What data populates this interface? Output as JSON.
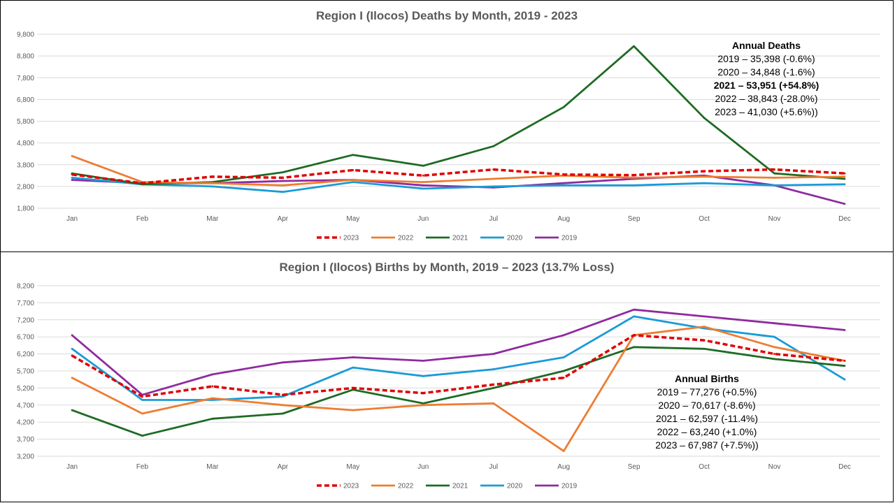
{
  "chart_data": [
    {
      "type": "line",
      "title": "Region I (Ilocos) Deaths by Month, 2019 - 2023",
      "categories": [
        "Jan",
        "Feb",
        "Mar",
        "Apr",
        "May",
        "Jun",
        "Jul",
        "Aug",
        "Sep",
        "Oct",
        "Nov",
        "Dec"
      ],
      "ylim": [
        1800,
        9800
      ],
      "yticks": [
        "1,800",
        "2,800",
        "3,800",
        "4,800",
        "5,800",
        "6,800",
        "7,800",
        "8,800",
        "9,800"
      ],
      "grid": true,
      "legend_position": "bottom",
      "series": [
        {
          "name": "2023",
          "color": "#E00000",
          "dashed": true,
          "values": [
            3350,
            2950,
            3250,
            3200,
            3550,
            3300,
            3580,
            3350,
            3320,
            3500,
            3580,
            3400
          ]
        },
        {
          "name": "2022",
          "color": "#ED7D31",
          "dashed": false,
          "values": [
            4200,
            3000,
            2950,
            2850,
            3100,
            3000,
            3150,
            3300,
            3200,
            3250,
            3200,
            3250
          ]
        },
        {
          "name": "2021",
          "color": "#1E6B24",
          "dashed": false,
          "values": [
            3400,
            2900,
            3000,
            3450,
            4250,
            3750,
            4650,
            6450,
            9250,
            5950,
            3400,
            3150
          ]
        },
        {
          "name": "2020",
          "color": "#1A9BD7",
          "dashed": false,
          "values": [
            3200,
            2900,
            2800,
            2550,
            3000,
            2700,
            2800,
            2850,
            2850,
            2950,
            2850,
            2900
          ]
        },
        {
          "name": "2019",
          "color": "#8E2B9E",
          "dashed": false,
          "values": [
            3100,
            2950,
            2950,
            3050,
            3100,
            2850,
            2750,
            2950,
            3150,
            3300,
            2850,
            2000
          ]
        }
      ],
      "annotation": {
        "header": "Annual Deaths",
        "lines": [
          {
            "text": "2019 – 35,398 (-0.6%)",
            "bold": false
          },
          {
            "text": "2020 – 34,848 (-1.6%)",
            "bold": false
          },
          {
            "text": "2021 – 53,951 (+54.8%)",
            "bold": true
          },
          {
            "text": "2022 – 38,843 (-28.0%)",
            "bold": false
          },
          {
            "text": "2023 – 41,030 (+5.6%))",
            "bold": false
          }
        ]
      }
    },
    {
      "type": "line",
      "title": "Region I (Ilocos) Births by Month, 2019 – 2023 (13.7% Loss)",
      "categories": [
        "Jan",
        "Feb",
        "Mar",
        "Apr",
        "May",
        "Jun",
        "Jul",
        "Aug",
        "Sep",
        "Oct",
        "Nov",
        "Dec"
      ],
      "ylim": [
        3200,
        8200
      ],
      "yticks": [
        "3,200",
        "3,700",
        "4,200",
        "4,700",
        "5,200",
        "5,700",
        "6,200",
        "6,700",
        "7,200",
        "7,700",
        "8,200"
      ],
      "grid": true,
      "legend_position": "bottom",
      "series": [
        {
          "name": "2023",
          "color": "#E00000",
          "dashed": true,
          "values": [
            6150,
            4950,
            5250,
            5000,
            5200,
            5050,
            5300,
            5500,
            6750,
            6600,
            6200,
            6000
          ]
        },
        {
          "name": "2022",
          "color": "#ED7D31",
          "dashed": false,
          "values": [
            5500,
            4450,
            4900,
            4700,
            4550,
            4700,
            4750,
            3350,
            6750,
            7000,
            6400,
            6000
          ]
        },
        {
          "name": "2021",
          "color": "#1E6B24",
          "dashed": false,
          "values": [
            4550,
            3800,
            4300,
            4450,
            5150,
            4750,
            5200,
            5700,
            6400,
            6350,
            6050,
            5850
          ]
        },
        {
          "name": "2020",
          "color": "#1A9BD7",
          "dashed": false,
          "values": [
            6350,
            4850,
            4850,
            4950,
            5800,
            5550,
            5750,
            6100,
            7300,
            6950,
            6700,
            5450
          ]
        },
        {
          "name": "2019",
          "color": "#8E2B9E",
          "dashed": false,
          "values": [
            6750,
            5000,
            5600,
            5950,
            6100,
            6000,
            6200,
            6750,
            7500,
            7300,
            7100,
            6900
          ]
        }
      ],
      "annotation": {
        "header": "Annual Births",
        "lines": [
          {
            "text": "2019 – 77,276 (+0.5%)",
            "bold": false
          },
          {
            "text": "2020 – 70,617 (-8.6%)",
            "bold": false
          },
          {
            "text": "2021 – 62,597 (-11.4%)",
            "bold": false
          },
          {
            "text": "2022 – 63,240 (+1.0%)",
            "bold": false
          },
          {
            "text": "2023 – 67,987 (+7.5%))",
            "bold": false
          }
        ]
      }
    }
  ]
}
